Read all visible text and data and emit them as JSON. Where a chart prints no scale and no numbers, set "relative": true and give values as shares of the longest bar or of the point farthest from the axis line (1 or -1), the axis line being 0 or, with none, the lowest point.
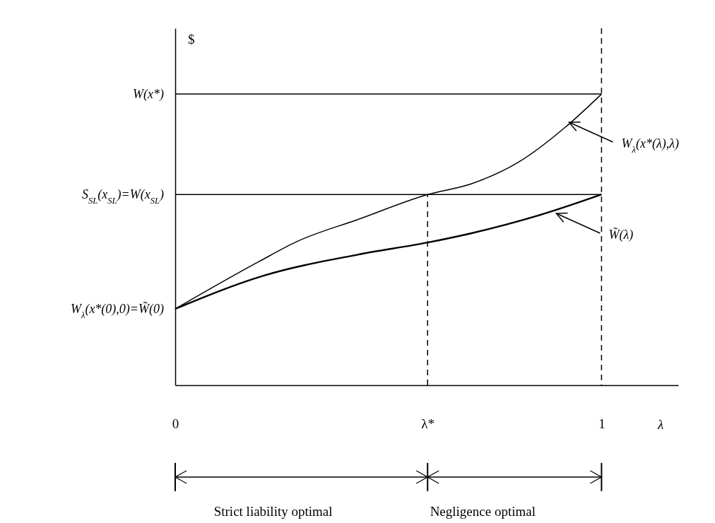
{
  "chart_data": {
    "type": "line",
    "relative": true,
    "xlabel": "λ",
    "ylabel": "$",
    "xlim": [
      0,
      1.18
    ],
    "xticks": [
      0,
      {
        "value": 0.592,
        "label": "λ*"
      },
      1
    ],
    "grid": false,
    "line_style": "solid",
    "series": [
      {
        "color": "#000000",
        "x": [
          0,
          0.197,
          0.285,
          0.43,
          0.592,
          0.695,
          0.804,
          0.915,
          1
        ],
        "values": [
          0.262,
          0.425,
          0.493,
          0.57,
          0.655,
          0.692,
          0.765,
          0.886,
          1
        ]
      },
      {
        "color": "#000000",
        "x": [
          0,
          0.207,
          0.43,
          0.592,
          0.695,
          0.861,
          1
        ],
        "values": [
          0.262,
          0.376,
          0.449,
          0.49,
          0.522,
          0.587,
          0.655
        ]
      },
      {
        "color": "#000000",
        "x": [
          0,
          1
        ],
        "values": [
          1,
          1
        ]
      },
      {
        "color": "#000000",
        "x": [
          0,
          1
        ],
        "values": [
          0.655,
          0.655
        ]
      },
      {
        "color": "#000000",
        "x": [
          0.592,
          0.592
        ],
        "values": [
          0,
          0.655
        ],
        "line_style": "dashed"
      }
    ],
    "ref_lines": [
      {
        "axis": "x",
        "value": 1,
        "line_style": "dashed",
        "color": "#000000"
      }
    ],
    "annotations": [
      {
        "text": "W(x*)",
        "x": 0,
        "y": 1
      },
      {
        "text": "S$_{SL}$(x$_{SL}$)=W(x$_{SL}$)",
        "x": 0,
        "y": 0.655
      },
      {
        "text": "W$_{λ}$(x*(0),0)=W̃(0)",
        "x": 0,
        "y": 0.262
      },
      {
        "text": "W$_{λ}$(x*(λ),λ)",
        "x": 0.924,
        "y": 0.903
      },
      {
        "text": "W̃(λ)",
        "x": 0.894,
        "y": 0.59
      },
      "Strict liability optimal",
      "Negligence optimal"
    ]
  }
}
